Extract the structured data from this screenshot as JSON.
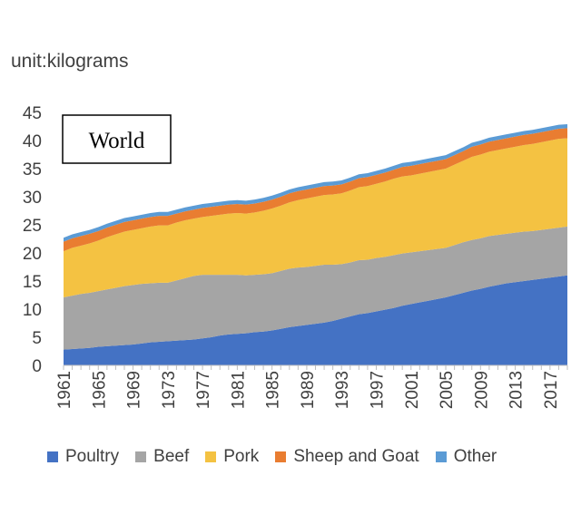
{
  "unit_label": "unit:kilograms",
  "chart_data": {
    "type": "area",
    "stacked": true,
    "title": "World",
    "x": [
      1961,
      1962,
      1963,
      1964,
      1965,
      1966,
      1967,
      1968,
      1969,
      1970,
      1971,
      1972,
      1973,
      1974,
      1975,
      1976,
      1977,
      1978,
      1979,
      1980,
      1981,
      1982,
      1983,
      1984,
      1985,
      1986,
      1987,
      1988,
      1989,
      1990,
      1991,
      1992,
      1993,
      1994,
      1995,
      1996,
      1997,
      1998,
      1999,
      2000,
      2001,
      2002,
      2003,
      2004,
      2005,
      2006,
      2007,
      2008,
      2009,
      2010,
      2011,
      2012,
      2013,
      2014,
      2015,
      2016,
      2017,
      2018,
      2019
    ],
    "xticks": [
      "1961",
      "1965",
      "1969",
      "1973",
      "1977",
      "1981",
      "1985",
      "1989",
      "1993",
      "1997",
      "2001",
      "2005",
      "2009",
      "2013",
      "2017"
    ],
    "ylim": [
      0,
      45
    ],
    "yticks": [
      0,
      5,
      10,
      15,
      20,
      25,
      30,
      35,
      40,
      45
    ],
    "series": [
      {
        "name": "Poultry",
        "color": "#4472C4",
        "values": [
          2.8,
          2.9,
          3.0,
          3.1,
          3.3,
          3.4,
          3.5,
          3.6,
          3.7,
          3.9,
          4.1,
          4.2,
          4.3,
          4.4,
          4.5,
          4.6,
          4.8,
          5.0,
          5.3,
          5.5,
          5.6,
          5.7,
          5.9,
          6.0,
          6.2,
          6.5,
          6.8,
          7.0,
          7.2,
          7.4,
          7.6,
          7.9,
          8.3,
          8.7,
          9.1,
          9.3,
          9.6,
          9.9,
          10.2,
          10.6,
          10.9,
          11.2,
          11.5,
          11.8,
          12.1,
          12.5,
          12.9,
          13.3,
          13.6,
          14.0,
          14.3,
          14.6,
          14.8,
          15.0,
          15.2,
          15.4,
          15.6,
          15.8,
          16.0
        ]
      },
      {
        "name": "Beef",
        "color": "#A5A5A5",
        "values": [
          9.3,
          9.5,
          9.7,
          9.8,
          9.9,
          10.1,
          10.3,
          10.5,
          10.6,
          10.6,
          10.5,
          10.5,
          10.4,
          10.7,
          11.0,
          11.3,
          11.3,
          11.1,
          10.8,
          10.6,
          10.5,
          10.3,
          10.2,
          10.2,
          10.2,
          10.3,
          10.4,
          10.4,
          10.3,
          10.3,
          10.3,
          10.0,
          9.7,
          9.6,
          9.6,
          9.5,
          9.5,
          9.4,
          9.4,
          9.3,
          9.2,
          9.1,
          9.0,
          8.9,
          8.8,
          8.9,
          9.0,
          9.0,
          9.0,
          9.0,
          8.9,
          8.8,
          8.8,
          8.8,
          8.7,
          8.7,
          8.7,
          8.7,
          8.7
        ]
      },
      {
        "name": "Pork",
        "color": "#F4C242",
        "values": [
          8.2,
          8.5,
          8.6,
          8.8,
          9.0,
          9.3,
          9.5,
          9.7,
          9.8,
          9.9,
          10.1,
          10.2,
          10.2,
          10.3,
          10.3,
          10.2,
          10.3,
          10.5,
          10.7,
          10.9,
          11.0,
          11.0,
          11.1,
          11.3,
          11.5,
          11.6,
          11.8,
          12.0,
          12.2,
          12.3,
          12.4,
          12.5,
          12.6,
          12.8,
          13.0,
          13.1,
          13.2,
          13.4,
          13.6,
          13.7,
          13.7,
          13.8,
          13.9,
          14.0,
          14.1,
          14.3,
          14.5,
          14.8,
          14.9,
          15.0,
          15.1,
          15.2,
          15.3,
          15.4,
          15.5,
          15.6,
          15.7,
          15.8,
          15.7
        ]
      },
      {
        "name": "Sheep and Goat",
        "color": "#E97D31",
        "values": [
          1.7,
          1.7,
          1.7,
          1.7,
          1.7,
          1.7,
          1.7,
          1.7,
          1.7,
          1.7,
          1.7,
          1.7,
          1.7,
          1.6,
          1.6,
          1.6,
          1.6,
          1.6,
          1.6,
          1.6,
          1.6,
          1.6,
          1.6,
          1.6,
          1.6,
          1.6,
          1.6,
          1.6,
          1.6,
          1.6,
          1.6,
          1.6,
          1.6,
          1.6,
          1.6,
          1.6,
          1.6,
          1.6,
          1.6,
          1.7,
          1.7,
          1.7,
          1.7,
          1.7,
          1.7,
          1.7,
          1.7,
          1.8,
          1.8,
          1.8,
          1.8,
          1.8,
          1.8,
          1.8,
          1.8,
          1.8,
          1.8,
          1.8,
          1.8
        ]
      },
      {
        "name": "Other",
        "color": "#5B9BD5",
        "values": [
          0.7,
          0.7,
          0.7,
          0.7,
          0.7,
          0.7,
          0.7,
          0.7,
          0.7,
          0.7,
          0.7,
          0.7,
          0.7,
          0.7,
          0.7,
          0.7,
          0.7,
          0.7,
          0.7,
          0.7,
          0.7,
          0.7,
          0.7,
          0.7,
          0.7,
          0.7,
          0.7,
          0.7,
          0.7,
          0.7,
          0.7,
          0.7,
          0.7,
          0.7,
          0.7,
          0.7,
          0.7,
          0.7,
          0.7,
          0.7,
          0.7,
          0.7,
          0.7,
          0.7,
          0.7,
          0.7,
          0.7,
          0.7,
          0.7,
          0.7,
          0.7,
          0.7,
          0.7,
          0.7,
          0.7,
          0.7,
          0.7,
          0.7,
          0.7
        ]
      }
    ]
  }
}
